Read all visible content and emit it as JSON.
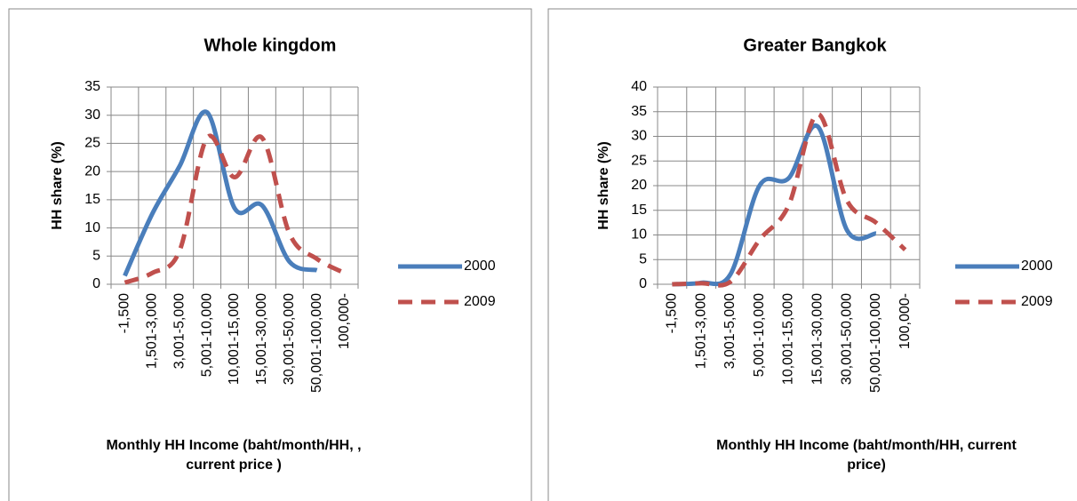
{
  "chart_data": [
    {
      "type": "line",
      "title": "Whole kingdom",
      "ylabel": "HH share (%)",
      "xlabel": [
        "Monthly HH Income (baht/month/HH, ,",
        "current price )"
      ],
      "categories": [
        "-1,500",
        "1,501-3,000",
        "3,001-5,000",
        "5,001-10,000",
        "10,001-15,000",
        "15,001-30,000",
        "30,001-50,000",
        "50,001-100,000",
        "100,000-"
      ],
      "series": [
        {
          "name": "2000",
          "color": "#4a7ebb",
          "dash": "solid",
          "values": [
            1.5,
            12.5,
            21,
            30.5,
            13.5,
            14,
            4,
            2.5,
            null
          ]
        },
        {
          "name": "2009",
          "color": "#c0504d",
          "dash": "dashed",
          "values": [
            0.3,
            2,
            6,
            26,
            19,
            26,
            9,
            4.5,
            2
          ]
        }
      ],
      "ylim": [
        0,
        35
      ],
      "yticks": [
        0,
        5,
        10,
        15,
        20,
        25,
        30,
        35
      ],
      "grid": true,
      "smooth": true,
      "legend": "right"
    },
    {
      "type": "line",
      "title": "Greater Bangkok",
      "ylabel": "HH share (%)",
      "xlabel": [
        "Monthly HH Income (baht/month/HH, current",
        "price)"
      ],
      "categories": [
        "-1,500",
        "1,501-3,000",
        "3,001-5,000",
        "5,001-10,000",
        "10,001-15,000",
        "15,001-30,000",
        "30,001-50,000",
        "50,001-100,000",
        "100,000-"
      ],
      "series": [
        {
          "name": "2000",
          "color": "#4a7ebb",
          "dash": "solid",
          "values": [
            0,
            0.3,
            2,
            20,
            21.5,
            32,
            11,
            10.3,
            null
          ]
        },
        {
          "name": "2009",
          "color": "#c0504d",
          "dash": "dashed",
          "values": [
            0,
            0.2,
            0.5,
            9,
            16,
            34.5,
            17,
            12.5,
            7
          ]
        }
      ],
      "ylim": [
        0,
        40
      ],
      "yticks": [
        0,
        5,
        10,
        15,
        20,
        25,
        30,
        35,
        40
      ],
      "grid": true,
      "smooth": true,
      "legend": "right"
    }
  ]
}
